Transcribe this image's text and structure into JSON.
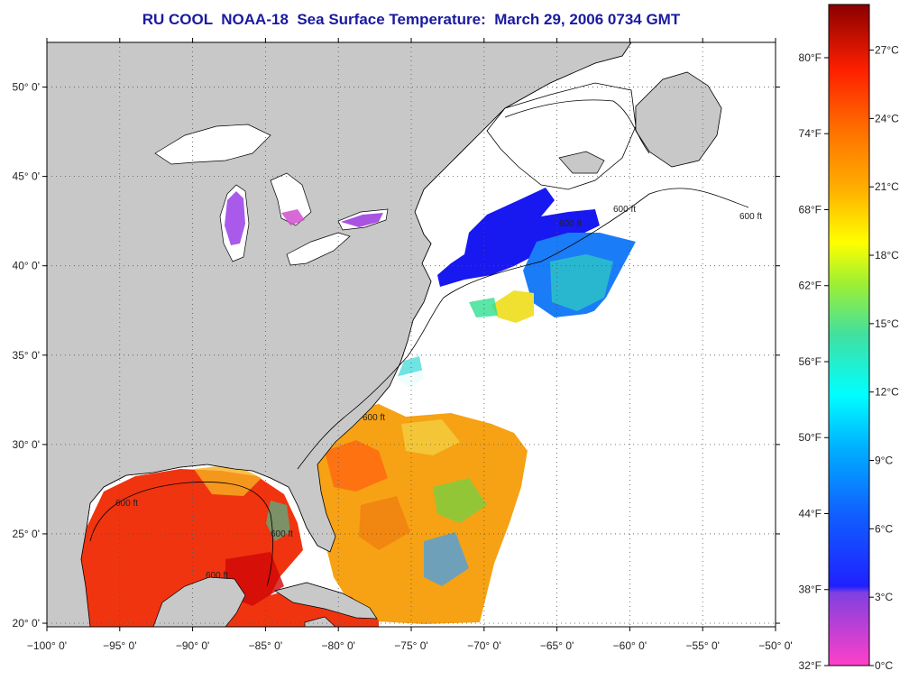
{
  "title": "RU COOL  NOAA-18  Sea Surface Temperature:  March 29, 2006 0734 GMT",
  "map": {
    "lon_range": [
      -100,
      -50
    ],
    "lat_range": [
      19.8,
      52.5
    ],
    "x_ticks": [
      {
        "value": -100,
        "label": "−100° 0'"
      },
      {
        "value": -95,
        "label": "−95° 0'"
      },
      {
        "value": -90,
        "label": "−90° 0'"
      },
      {
        "value": -85,
        "label": "−85° 0'"
      },
      {
        "value": -80,
        "label": "−80° 0'"
      },
      {
        "value": -75,
        "label": "−75° 0'"
      },
      {
        "value": -70,
        "label": "−70° 0'"
      },
      {
        "value": -65,
        "label": "−65° 0'"
      },
      {
        "value": -60,
        "label": "−60° 0'"
      },
      {
        "value": -55,
        "label": "−55° 0'"
      },
      {
        "value": -50,
        "label": "−50° 0'"
      }
    ],
    "y_ticks": [
      {
        "value": 20,
        "label": "20° 0'"
      },
      {
        "value": 25,
        "label": "25° 0'"
      },
      {
        "value": 30,
        "label": "30° 0'"
      },
      {
        "value": 35,
        "label": "35° 0'"
      },
      {
        "value": 40,
        "label": "40° 0'"
      },
      {
        "value": 45,
        "label": "45° 0'"
      },
      {
        "value": 50,
        "label": "50° 0'"
      }
    ],
    "grid": "dotted",
    "isobath_labels": [
      "600 ft",
      "600 ft",
      "600 ft",
      "600 ft",
      "600 ft",
      "600 ft",
      "600 ft"
    ],
    "colors": {
      "land": "#c8c8c8",
      "no_data": "#ffffff",
      "coast": "#000000"
    }
  },
  "colorbar": {
    "celsius_range": [
      0,
      29
    ],
    "fahrenheit_ticks": [
      {
        "value": 80,
        "label": "80°F"
      },
      {
        "value": 74,
        "label": "74°F"
      },
      {
        "value": 68,
        "label": "68°F"
      },
      {
        "value": 62,
        "label": "62°F"
      },
      {
        "value": 56,
        "label": "56°F"
      },
      {
        "value": 50,
        "label": "50°F"
      },
      {
        "value": 44,
        "label": "44°F"
      },
      {
        "value": 38,
        "label": "38°F"
      },
      {
        "value": 32,
        "label": "32°F"
      }
    ],
    "celsius_ticks": [
      {
        "value": 27,
        "label": "27°C"
      },
      {
        "value": 24,
        "label": "24°C"
      },
      {
        "value": 21,
        "label": "21°C"
      },
      {
        "value": 18,
        "label": "18°C"
      },
      {
        "value": 15,
        "label": "15°C"
      },
      {
        "value": 12,
        "label": "12°C"
      },
      {
        "value": 9,
        "label": "9°C"
      },
      {
        "value": 6,
        "label": "6°C"
      },
      {
        "value": 3,
        "label": "3°C"
      },
      {
        "value": 0,
        "label": "0°C"
      }
    ],
    "stops": [
      {
        "at": 0.0,
        "color": "#ff40c8"
      },
      {
        "at": 0.11,
        "color": "#8040e0"
      },
      {
        "at": 0.12,
        "color": "#2020ff"
      },
      {
        "at": 0.23,
        "color": "#1060ff"
      },
      {
        "at": 0.33,
        "color": "#00b0ff"
      },
      {
        "at": 0.41,
        "color": "#00ffff"
      },
      {
        "at": 0.5,
        "color": "#40e0a0"
      },
      {
        "at": 0.58,
        "color": "#a0f030"
      },
      {
        "at": 0.64,
        "color": "#ffff00"
      },
      {
        "at": 0.72,
        "color": "#ffb000"
      },
      {
        "at": 0.81,
        "color": "#ff7000"
      },
      {
        "at": 0.9,
        "color": "#ff2000"
      },
      {
        "at": 1.0,
        "color": "#8a0000"
      }
    ]
  }
}
